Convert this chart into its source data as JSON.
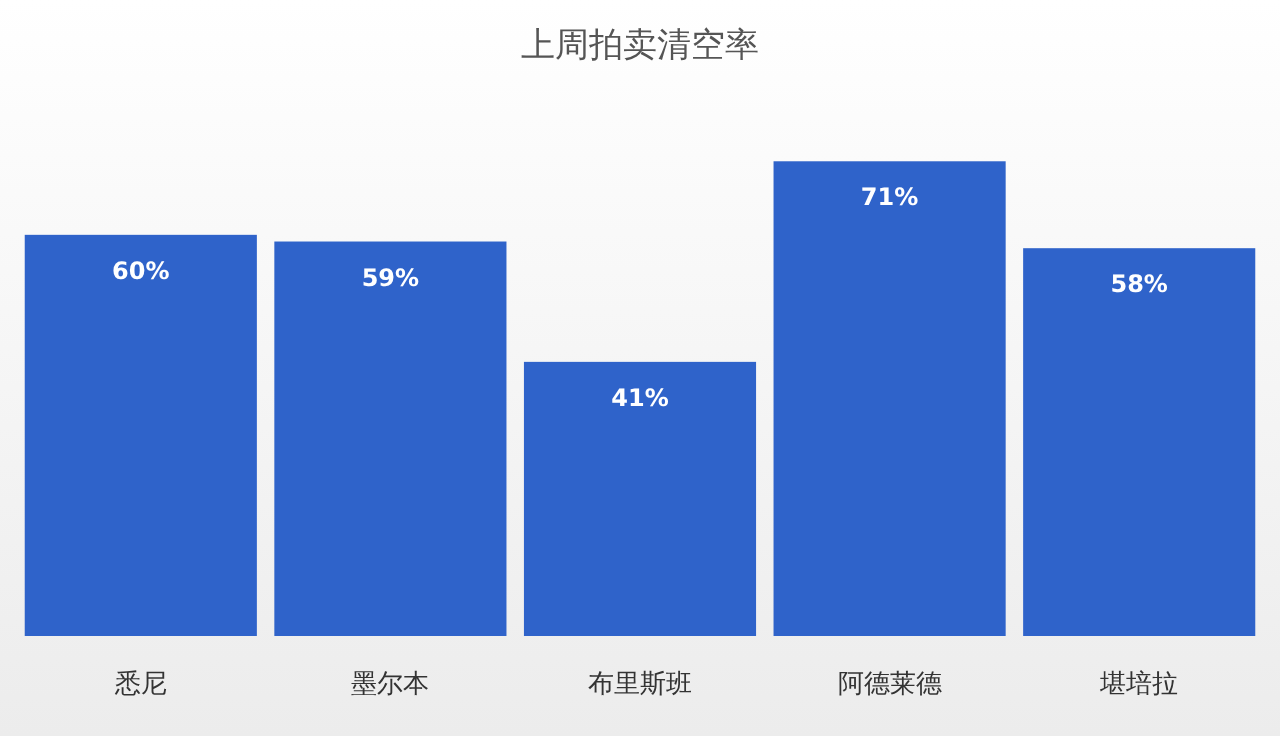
{
  "chart_data": {
    "type": "bar",
    "title": "上周拍卖清空率",
    "categories": [
      "悉尼",
      "墨尔本",
      "布里斯班",
      "阿德莱德",
      "堪培拉"
    ],
    "values": [
      60,
      59,
      41,
      71,
      58
    ],
    "value_labels": [
      "60%",
      "59%",
      "41%",
      "71%",
      "58%"
    ],
    "color": "#2f63ca"
  }
}
